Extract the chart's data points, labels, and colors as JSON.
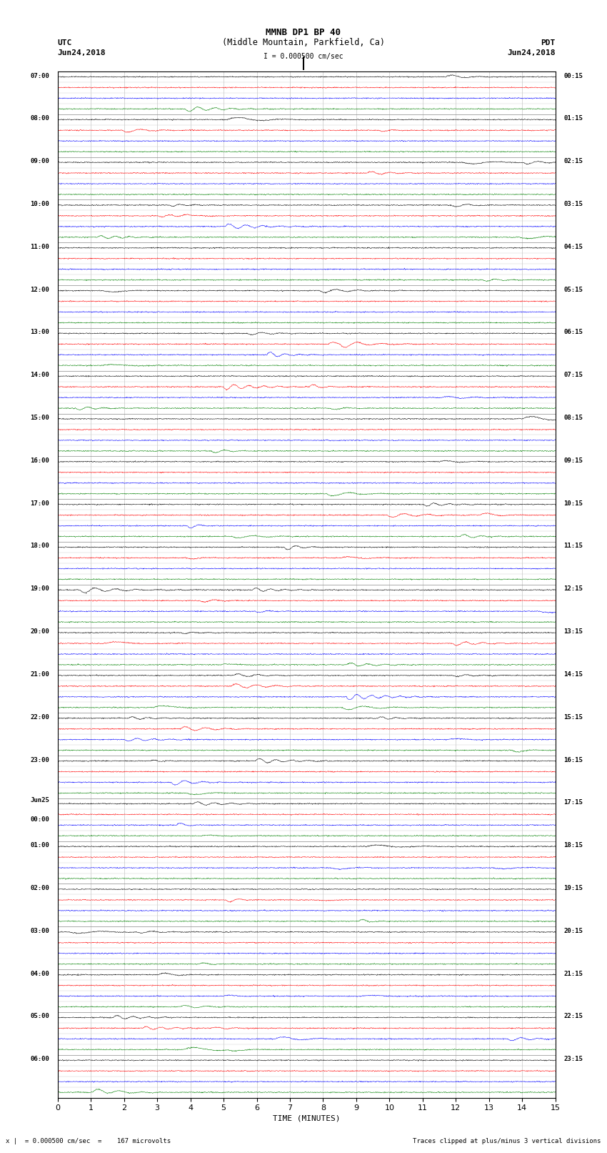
{
  "title_line1": "MMNB DP1 BP 40",
  "title_line2": "(Middle Mountain, Parkfield, Ca)",
  "left_header_top": "UTC",
  "left_header_bot": "Jun24,2018",
  "right_header_top": "PDT",
  "right_header_bot": "Jun24,2018",
  "scale_label": "I = 0.000500 cm/sec",
  "footer_left": "x |  = 0.000500 cm/sec  =    167 microvolts",
  "footer_right": "Traces clipped at plus/minus 3 vertical divisions",
  "xlabel": "TIME (MINUTES)",
  "num_hour_blocks": 24,
  "traces_per_block": 4,
  "trace_colors": [
    "black",
    "red",
    "blue",
    "green"
  ],
  "minutes_per_row": 15,
  "x_ticks": [
    0,
    1,
    2,
    3,
    4,
    5,
    6,
    7,
    8,
    9,
    10,
    11,
    12,
    13,
    14,
    15
  ],
  "fig_width": 8.5,
  "fig_height": 16.13,
  "plot_bg": "white",
  "left_time_labels": [
    "07:00",
    "08:00",
    "09:00",
    "10:00",
    "11:00",
    "12:00",
    "13:00",
    "14:00",
    "15:00",
    "16:00",
    "17:00",
    "18:00",
    "19:00",
    "20:00",
    "21:00",
    "22:00",
    "23:00",
    "Jun25\n00:00",
    "01:00",
    "02:00",
    "03:00",
    "04:00",
    "05:00",
    "06:00"
  ],
  "right_time_labels": [
    "00:15",
    "01:15",
    "02:15",
    "03:15",
    "04:15",
    "05:15",
    "06:15",
    "07:15",
    "08:15",
    "09:15",
    "10:15",
    "11:15",
    "12:15",
    "13:15",
    "14:15",
    "15:15",
    "16:15",
    "17:15",
    "18:15",
    "19:15",
    "20:15",
    "21:15",
    "22:15",
    "23:15"
  ],
  "seed": 42,
  "noise_amp": 0.03,
  "event_amp": 0.25,
  "clip_amp": 0.3
}
